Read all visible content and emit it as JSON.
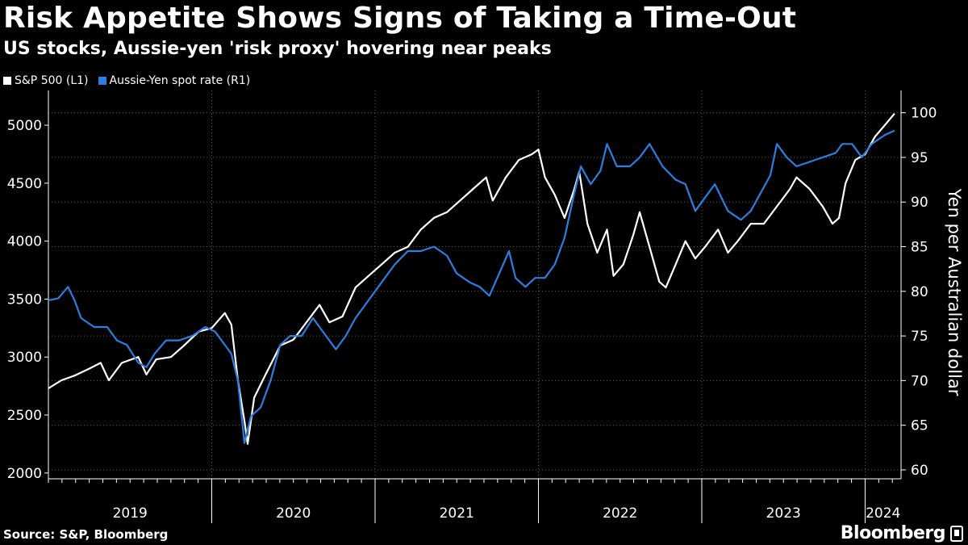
{
  "header": {
    "title": "Risk Appetite Shows Signs of Taking a Time-Out",
    "subtitle": "US stocks, Aussie-yen 'risk proxy' hovering near peaks"
  },
  "footer": {
    "source": "Source: S&P, Bloomberg",
    "brand": "Bloomberg"
  },
  "colors": {
    "background": "#000000",
    "sp500": "#ffffff",
    "aussie_yen": "#2a7fe0",
    "grid": "#555555"
  },
  "chart_data": {
    "type": "line",
    "title": "Risk Appetite Shows Signs of Taking a Time-Out",
    "subtitle": "US stocks, Aussie-yen 'risk proxy' hovering near peaks",
    "xlabel": "",
    "ylabel_left": "",
    "ylabel_right": "Yen per Australian dollar",
    "x_ticks": [
      "2019",
      "2020",
      "2021",
      "2022",
      "2023",
      "2024"
    ],
    "x_range": [
      2019.0,
      2024.22
    ],
    "left_axis": {
      "range": [
        1950,
        5300
      ],
      "ticks": [
        2000,
        2500,
        3000,
        3500,
        4000,
        4500,
        5000
      ]
    },
    "right_axis": {
      "range": [
        59,
        102.5
      ],
      "ticks": [
        60,
        65,
        70,
        75,
        80,
        85,
        90,
        95,
        100
      ]
    },
    "grid": true,
    "legend_position": "top-left",
    "series": [
      {
        "name": "S&P 500  (L1)",
        "axis": "left",
        "color": "#ffffff",
        "points": [
          [
            2019.0,
            2730
          ],
          [
            2019.08,
            2800
          ],
          [
            2019.16,
            2840
          ],
          [
            2019.25,
            2900
          ],
          [
            2019.32,
            2950
          ],
          [
            2019.37,
            2800
          ],
          [
            2019.45,
            2950
          ],
          [
            2019.55,
            3000
          ],
          [
            2019.6,
            2850
          ],
          [
            2019.66,
            2980
          ],
          [
            2019.75,
            3000
          ],
          [
            2019.83,
            3100
          ],
          [
            2019.92,
            3220
          ],
          [
            2020.0,
            3250
          ],
          [
            2020.08,
            3380
          ],
          [
            2020.12,
            3280
          ],
          [
            2020.16,
            2800
          ],
          [
            2020.2,
            2450
          ],
          [
            2020.22,
            2250
          ],
          [
            2020.26,
            2650
          ],
          [
            2020.33,
            2850
          ],
          [
            2020.42,
            3100
          ],
          [
            2020.5,
            3150
          ],
          [
            2020.58,
            3300
          ],
          [
            2020.66,
            3450
          ],
          [
            2020.72,
            3300
          ],
          [
            2020.8,
            3350
          ],
          [
            2020.88,
            3600
          ],
          [
            2020.96,
            3700
          ],
          [
            2021.04,
            3800
          ],
          [
            2021.12,
            3900
          ],
          [
            2021.2,
            3950
          ],
          [
            2021.28,
            4100
          ],
          [
            2021.36,
            4200
          ],
          [
            2021.44,
            4250
          ],
          [
            2021.52,
            4350
          ],
          [
            2021.6,
            4450
          ],
          [
            2021.68,
            4550
          ],
          [
            2021.72,
            4350
          ],
          [
            2021.8,
            4550
          ],
          [
            2021.88,
            4700
          ],
          [
            2021.96,
            4750
          ],
          [
            2022.0,
            4790
          ],
          [
            2022.04,
            4550
          ],
          [
            2022.1,
            4400
          ],
          [
            2022.16,
            4200
          ],
          [
            2022.22,
            4450
          ],
          [
            2022.25,
            4600
          ],
          [
            2022.3,
            4150
          ],
          [
            2022.36,
            3900
          ],
          [
            2022.42,
            4100
          ],
          [
            2022.46,
            3700
          ],
          [
            2022.52,
            3800
          ],
          [
            2022.58,
            4050
          ],
          [
            2022.62,
            4250
          ],
          [
            2022.68,
            3950
          ],
          [
            2022.74,
            3650
          ],
          [
            2022.78,
            3600
          ],
          [
            2022.84,
            3800
          ],
          [
            2022.9,
            4000
          ],
          [
            2022.96,
            3850
          ],
          [
            2023.02,
            3950
          ],
          [
            2023.1,
            4100
          ],
          [
            2023.16,
            3900
          ],
          [
            2023.22,
            4000
          ],
          [
            2023.3,
            4150
          ],
          [
            2023.38,
            4150
          ],
          [
            2023.46,
            4300
          ],
          [
            2023.54,
            4450
          ],
          [
            2023.58,
            4550
          ],
          [
            2023.66,
            4450
          ],
          [
            2023.74,
            4300
          ],
          [
            2023.8,
            4150
          ],
          [
            2023.84,
            4200
          ],
          [
            2023.88,
            4500
          ],
          [
            2023.94,
            4700
          ],
          [
            2024.0,
            4750
          ],
          [
            2024.06,
            4900
          ],
          [
            2024.12,
            5000
          ],
          [
            2024.18,
            5100
          ]
        ]
      },
      {
        "name": "Aussie-Yen spot rate (R1)",
        "axis": "right",
        "color": "#2a7fe0",
        "points": [
          [
            2019.0,
            79
          ],
          [
            2019.06,
            79.2
          ],
          [
            2019.12,
            80.5
          ],
          [
            2019.16,
            79
          ],
          [
            2019.2,
            77
          ],
          [
            2019.28,
            76
          ],
          [
            2019.36,
            76
          ],
          [
            2019.42,
            74.5
          ],
          [
            2019.48,
            74
          ],
          [
            2019.55,
            72
          ],
          [
            2019.6,
            71.5
          ],
          [
            2019.65,
            73
          ],
          [
            2019.72,
            74.5
          ],
          [
            2019.8,
            74.5
          ],
          [
            2019.88,
            75
          ],
          [
            2019.96,
            76
          ],
          [
            2020.02,
            75.5
          ],
          [
            2020.08,
            74
          ],
          [
            2020.12,
            73
          ],
          [
            2020.16,
            70
          ],
          [
            2020.2,
            63
          ],
          [
            2020.24,
            66
          ],
          [
            2020.3,
            67
          ],
          [
            2020.36,
            70
          ],
          [
            2020.42,
            74
          ],
          [
            2020.48,
            75
          ],
          [
            2020.55,
            75
          ],
          [
            2020.62,
            77
          ],
          [
            2020.7,
            75
          ],
          [
            2020.76,
            73.5
          ],
          [
            2020.82,
            75
          ],
          [
            2020.88,
            77
          ],
          [
            2020.96,
            79
          ],
          [
            2021.04,
            81
          ],
          [
            2021.12,
            83
          ],
          [
            2021.2,
            84.5
          ],
          [
            2021.28,
            84.5
          ],
          [
            2021.36,
            85
          ],
          [
            2021.44,
            84
          ],
          [
            2021.5,
            82
          ],
          [
            2021.58,
            81
          ],
          [
            2021.64,
            80.5
          ],
          [
            2021.7,
            79.5
          ],
          [
            2021.76,
            82
          ],
          [
            2021.82,
            84.5
          ],
          [
            2021.86,
            81.5
          ],
          [
            2021.92,
            80.5
          ],
          [
            2021.98,
            81.5
          ],
          [
            2022.04,
            81.5
          ],
          [
            2022.1,
            83
          ],
          [
            2022.16,
            86
          ],
          [
            2022.22,
            91
          ],
          [
            2022.26,
            94
          ],
          [
            2022.32,
            92
          ],
          [
            2022.38,
            93.5
          ],
          [
            2022.42,
            96.5
          ],
          [
            2022.48,
            94
          ],
          [
            2022.56,
            94
          ],
          [
            2022.62,
            95
          ],
          [
            2022.68,
            96.5
          ],
          [
            2022.76,
            94
          ],
          [
            2022.84,
            92.5
          ],
          [
            2022.9,
            92
          ],
          [
            2022.96,
            89
          ],
          [
            2023.02,
            90.5
          ],
          [
            2023.08,
            92
          ],
          [
            2023.16,
            89
          ],
          [
            2023.24,
            88
          ],
          [
            2023.3,
            89
          ],
          [
            2023.36,
            91
          ],
          [
            2023.42,
            93
          ],
          [
            2023.46,
            96.5
          ],
          [
            2023.52,
            95
          ],
          [
            2023.58,
            94
          ],
          [
            2023.66,
            94.5
          ],
          [
            2023.74,
            95
          ],
          [
            2023.82,
            95.5
          ],
          [
            2023.86,
            96.5
          ],
          [
            2023.92,
            96.5
          ],
          [
            2023.98,
            95
          ],
          [
            2024.04,
            96.5
          ],
          [
            2024.12,
            97.5
          ],
          [
            2024.18,
            98
          ]
        ]
      }
    ]
  }
}
